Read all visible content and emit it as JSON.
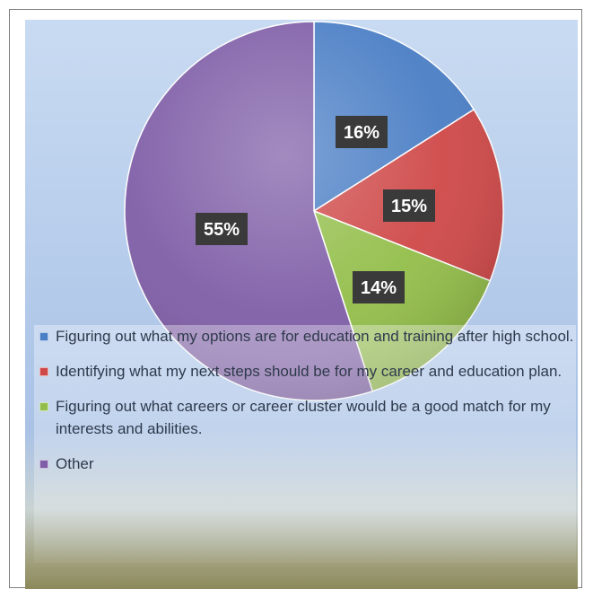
{
  "chart_data": {
    "type": "pie",
    "title": "",
    "slices": [
      {
        "label": "Figuring out what my options are for education and training after high school.",
        "value": 16,
        "display": "16%",
        "color": "#4a7ec5"
      },
      {
        "label": "Identifying what my next steps should be for my career and education plan.",
        "value": 15,
        "display": "15%",
        "color": "#cf4848"
      },
      {
        "label": "Figuring out what careers or career cluster would be a good match for my interests and abilities.",
        "value": 14,
        "display": "14%",
        "color": "#93be4a"
      },
      {
        "label": "Other",
        "value": 55,
        "display": "55%",
        "color": "#7f5ea7"
      }
    ],
    "legend_placement": "bottom-overlay"
  },
  "colors": {
    "background_top": "#c6d8f0",
    "background_bottom": "#8c8a5c",
    "label_box": "#3a3a3a"
  }
}
